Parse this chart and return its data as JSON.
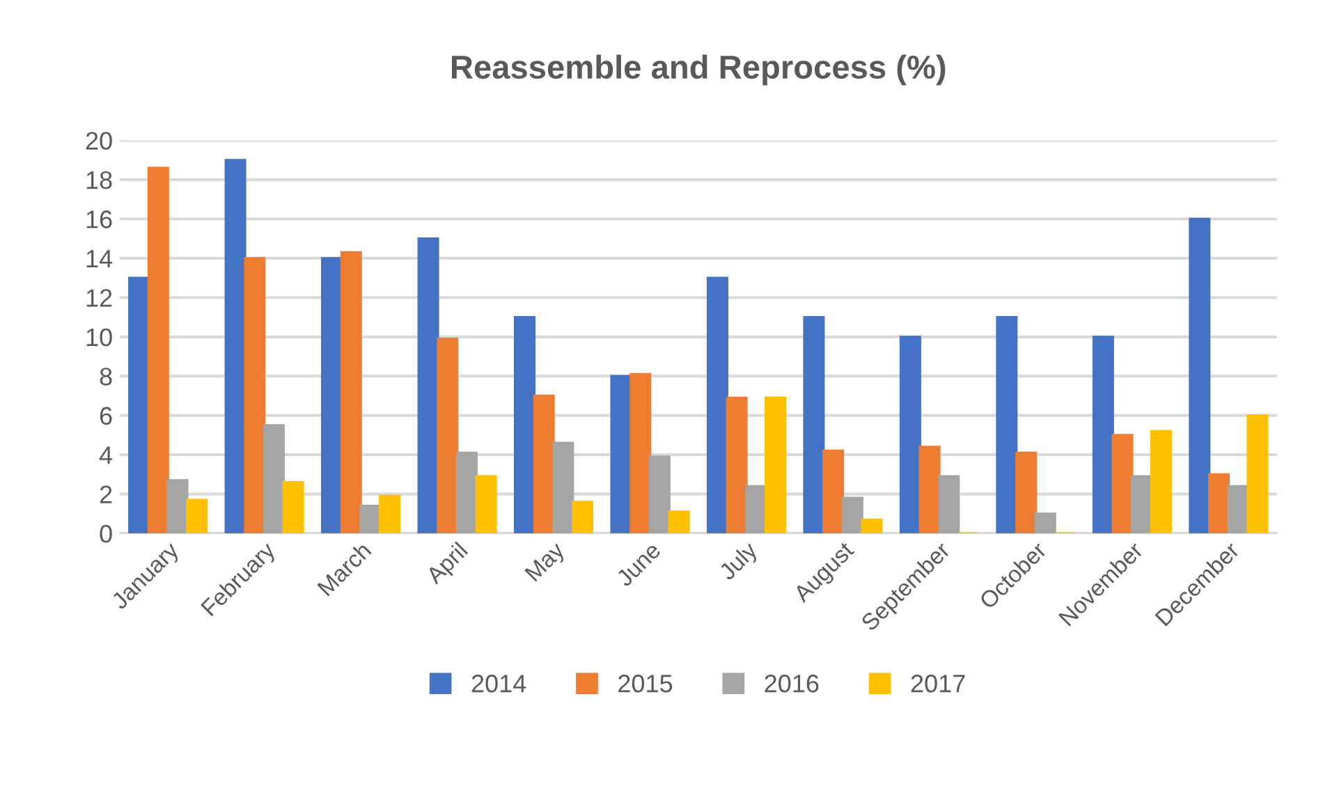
{
  "chart_data": {
    "type": "bar",
    "title": "Reassemble and Reprocess (%)",
    "categories": [
      "January",
      "February",
      "March",
      "April",
      "May",
      "June",
      "July",
      "August",
      "September",
      "October",
      "November",
      "December"
    ],
    "series": [
      {
        "name": "2014",
        "color": "#4472c4",
        "values": [
          13,
          19,
          14,
          15,
          11,
          8,
          13,
          11,
          10,
          11,
          10,
          16
        ]
      },
      {
        "name": "2015",
        "color": "#ed7d31",
        "values": [
          18.6,
          14,
          14.3,
          9.9,
          7,
          8.1,
          6.9,
          4.2,
          4.4,
          4.1,
          5,
          3
        ]
      },
      {
        "name": "2016",
        "color": "#a5a5a5",
        "values": [
          2.7,
          5.5,
          1.4,
          4.1,
          4.6,
          3.9,
          2.4,
          1.8,
          2.9,
          1,
          2.9,
          2.4
        ]
      },
      {
        "name": "2017",
        "color": "#ffc000",
        "values": [
          1.7,
          2.6,
          1.9,
          2.9,
          1.6,
          1.1,
          6.9,
          0.7,
          0,
          0,
          5.2,
          6
        ]
      }
    ],
    "ylim": [
      0,
      20
    ],
    "yticks": [
      0,
      2,
      4,
      6,
      8,
      10,
      12,
      14,
      16,
      18,
      20
    ],
    "grid": "y",
    "legend": "bottom"
  }
}
